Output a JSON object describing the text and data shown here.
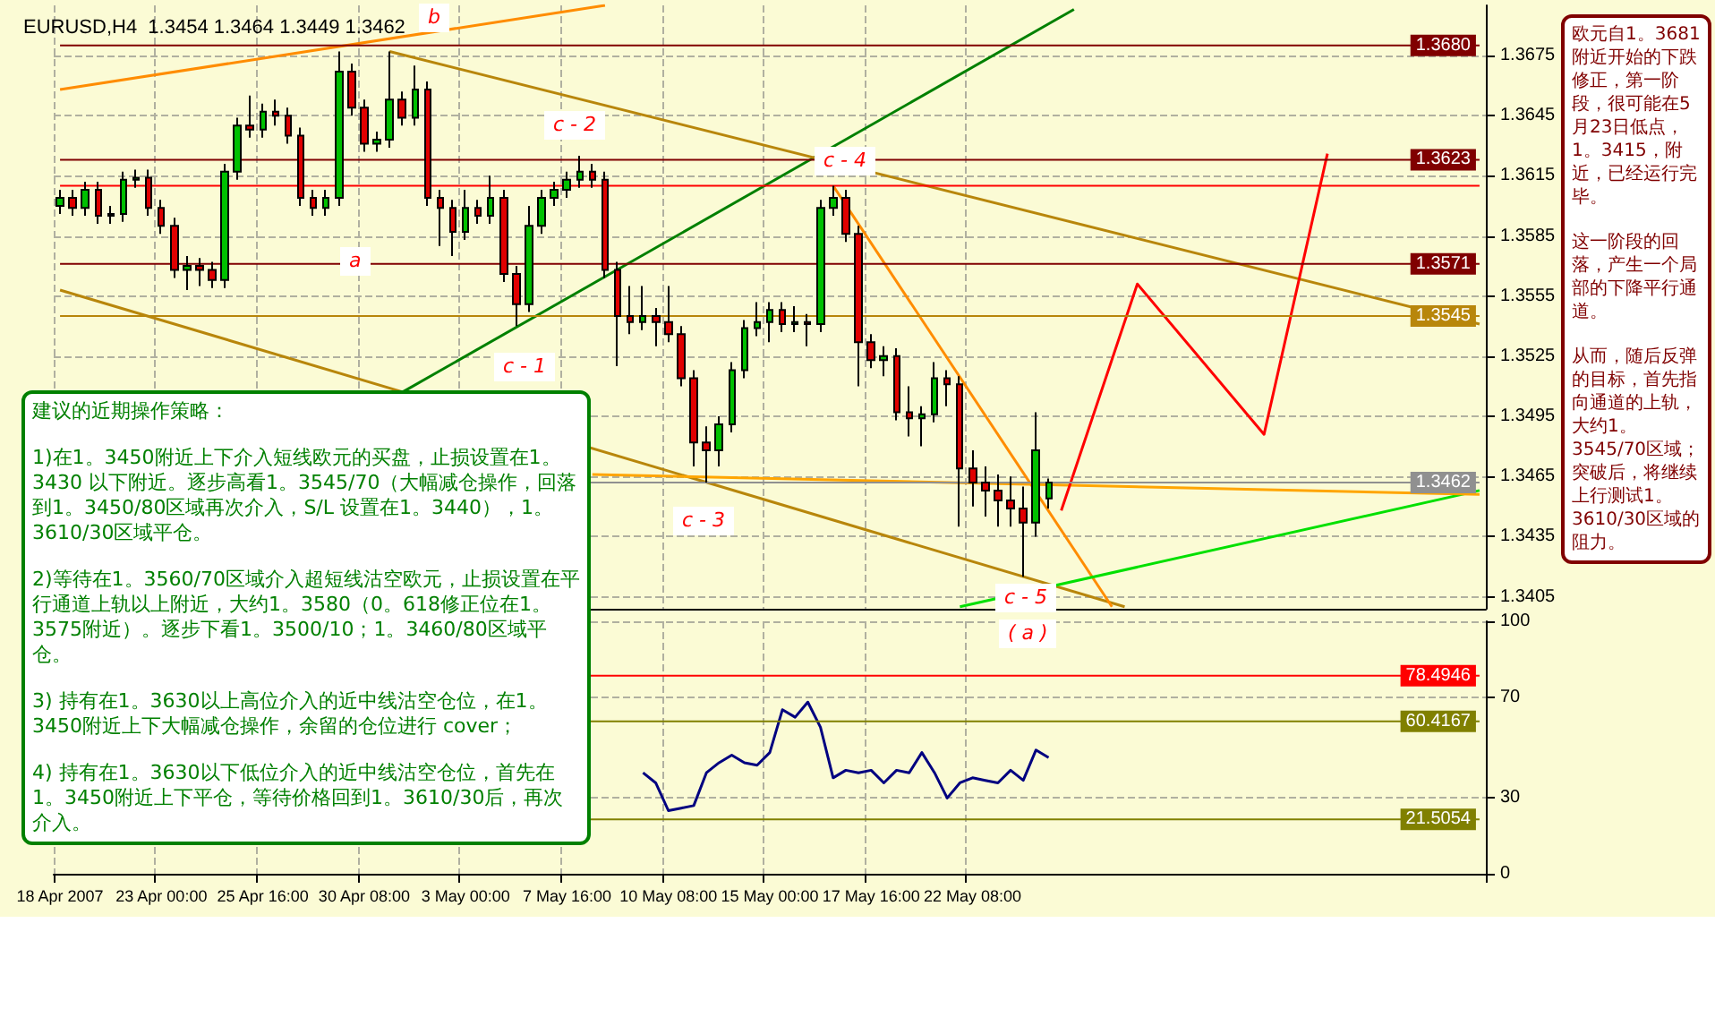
{
  "chart_data": [
    {
      "type": "candlestick",
      "title": "EURUSD,H4  1.3454 1.3464 1.3449 1.3462",
      "categories": [
        null,
        null,
        null,
        null,
        null,
        null,
        null,
        null,
        null,
        null,
        null,
        null,
        null,
        null,
        null,
        null,
        null,
        null,
        null,
        null,
        null,
        null,
        null,
        null,
        null,
        null,
        null,
        null,
        null,
        null,
        null,
        null,
        null,
        null,
        null,
        null,
        null,
        null,
        null,
        null,
        null,
        null,
        null,
        null,
        null,
        null,
        null,
        null,
        null,
        null,
        null,
        null,
        null,
        null,
        null,
        null,
        null,
        null,
        null,
        null,
        null,
        null,
        null,
        null,
        null,
        null,
        null,
        null,
        null,
        null,
        null,
        null,
        null,
        null,
        null,
        null,
        null,
        null,
        null,
        null,
        null,
        null,
        null,
        null,
        null,
        null,
        null,
        null,
        null,
        null,
        null,
        null,
        null,
        null,
        null,
        null,
        null,
        null,
        null,
        null,
        null,
        null,
        null,
        null,
        null,
        null,
        null,
        null,
        null,
        null,
        null,
        null,
        null
      ],
      "ohlc": [
        [
          1.36,
          1.3608,
          1.3596,
          1.3604
        ],
        [
          1.3604,
          1.3608,
          1.3595,
          1.3599
        ],
        [
          1.3599,
          1.3612,
          1.3595,
          1.3608
        ],
        [
          1.3608,
          1.3612,
          1.3591,
          1.3595
        ],
        [
          1.3595,
          1.36,
          1.3591,
          1.3596
        ],
        [
          1.3596,
          1.3617,
          1.3592,
          1.3613
        ],
        [
          1.3613,
          1.3618,
          1.3609,
          1.3614
        ],
        [
          1.3614,
          1.3618,
          1.3595,
          1.3599
        ],
        [
          1.3599,
          1.3603,
          1.3586,
          1.359
        ],
        [
          1.359,
          1.3594,
          1.3564,
          1.3568
        ],
        [
          1.3568,
          1.3575,
          1.3558,
          1.357
        ],
        [
          1.357,
          1.3574,
          1.356,
          1.3568
        ],
        [
          1.3568,
          1.3572,
          1.3559,
          1.3563
        ],
        [
          1.3563,
          1.3621,
          1.3559,
          1.3617
        ],
        [
          1.3617,
          1.3644,
          1.3613,
          1.364
        ],
        [
          1.364,
          1.3655,
          1.3634,
          1.3638
        ],
        [
          1.3638,
          1.3651,
          1.3634,
          1.3647
        ],
        [
          1.3647,
          1.3653,
          1.364,
          1.3645
        ],
        [
          1.3645,
          1.3649,
          1.3631,
          1.3635
        ],
        [
          1.3635,
          1.3639,
          1.36,
          1.3604
        ],
        [
          1.3604,
          1.3608,
          1.3595,
          1.3599
        ],
        [
          1.3599,
          1.3608,
          1.3595,
          1.3604
        ],
        [
          1.3604,
          1.3677,
          1.36,
          1.3667
        ],
        [
          1.3667,
          1.3671,
          1.3645,
          1.3649
        ],
        [
          1.3649,
          1.3653,
          1.3627,
          1.3631
        ],
        [
          1.3631,
          1.3637,
          1.3627,
          1.3633
        ],
        [
          1.3633,
          1.3677,
          1.3629,
          1.3653
        ],
        [
          1.3653,
          1.3657,
          1.364,
          1.3644
        ],
        [
          1.3644,
          1.367,
          1.364,
          1.3658
        ],
        [
          1.3658,
          1.3662,
          1.36,
          1.3604
        ],
        [
          1.3604,
          1.3608,
          1.358,
          1.3599
        ],
        [
          1.3599,
          1.3603,
          1.3575,
          1.3587
        ],
        [
          1.3587,
          1.3608,
          1.3583,
          1.3599
        ],
        [
          1.3599,
          1.3603,
          1.3591,
          1.3595
        ],
        [
          1.3595,
          1.3615,
          1.3591,
          1.3604
        ],
        [
          1.3604,
          1.3608,
          1.3562,
          1.3566
        ],
        [
          1.3566,
          1.357,
          1.354,
          1.3551
        ],
        [
          1.3551,
          1.36,
          1.3547,
          1.359
        ],
        [
          1.359,
          1.3608,
          1.3586,
          1.3604
        ],
        [
          1.3604,
          1.3612,
          1.36,
          1.3608
        ],
        [
          1.3608,
          1.3617,
          1.3604,
          1.3613
        ],
        [
          1.3613,
          1.3625,
          1.3609,
          1.3617
        ],
        [
          1.3617,
          1.3621,
          1.3609,
          1.3613
        ],
        [
          1.3613,
          1.3617,
          1.3564,
          1.3568
        ],
        [
          1.3568,
          1.3572,
          1.352,
          1.3545
        ],
        [
          1.3545,
          1.356,
          1.3536,
          1.3542
        ],
        [
          1.3542,
          1.356,
          1.3538,
          1.3545
        ],
        [
          1.3545,
          1.3549,
          1.353,
          1.3542
        ],
        [
          1.3542,
          1.356,
          1.3532,
          1.3536
        ],
        [
          1.3536,
          1.354,
          1.351,
          1.3514
        ],
        [
          1.3514,
          1.3518,
          1.347,
          1.3482
        ],
        [
          1.3482,
          1.349,
          1.3462,
          1.3478
        ],
        [
          1.3478,
          1.3495,
          1.347,
          1.3491
        ],
        [
          1.3491,
          1.3522,
          1.3487,
          1.3518
        ],
        [
          1.3518,
          1.3543,
          1.3514,
          1.3539
        ],
        [
          1.3539,
          1.3552,
          1.3535,
          1.3542
        ],
        [
          1.3542,
          1.3552,
          1.3532,
          1.3548
        ],
        [
          1.3548,
          1.3552,
          1.3537,
          1.3541
        ],
        [
          1.3541,
          1.355,
          1.3537,
          1.3542
        ],
        [
          1.3542,
          1.3546,
          1.353,
          1.3541
        ],
        [
          1.3541,
          1.3603,
          1.3537,
          1.3599
        ],
        [
          1.3599,
          1.361,
          1.3595,
          1.3604
        ],
        [
          1.3604,
          1.3608,
          1.3582,
          1.3586
        ],
        [
          1.3586,
          1.359,
          1.351,
          1.3532
        ],
        [
          1.3532,
          1.3536,
          1.3519,
          1.3523
        ],
        [
          1.3523,
          1.353,
          1.3515,
          1.3525
        ],
        [
          1.3525,
          1.3529,
          1.3493,
          1.3497
        ],
        [
          1.3497,
          1.351,
          1.3485,
          1.3494
        ],
        [
          1.3494,
          1.35,
          1.348,
          1.3496
        ],
        [
          1.3496,
          1.3522,
          1.3492,
          1.3514
        ],
        [
          1.3514,
          1.3518,
          1.35,
          1.3511
        ],
        [
          1.3511,
          1.3515,
          1.344,
          1.3469
        ],
        [
          1.3469,
          1.3478,
          1.345,
          1.3462
        ],
        [
          1.3462,
          1.347,
          1.3445,
          1.3458
        ],
        [
          1.3458,
          1.3466,
          1.344,
          1.3453
        ],
        [
          1.3453,
          1.3465,
          1.344,
          1.3449
        ],
        [
          1.3449,
          1.346,
          1.3415,
          1.3442
        ],
        [
          1.3442,
          1.3497,
          1.3435,
          1.3478
        ],
        [
          1.3454,
          1.3464,
          1.3449,
          1.3462
        ],
        null,
        null,
        null,
        null,
        null,
        null,
        null,
        null,
        null,
        null,
        null,
        null,
        null,
        null,
        null,
        null,
        null,
        null,
        null,
        null,
        null,
        null,
        null,
        null,
        null,
        null,
        null,
        null,
        null,
        null,
        null,
        null,
        null,
        null
      ],
      "series": [
        {
          "type": "line",
          "color": "#ff8c00",
          "values": [
            1.3658,
            null,
            null,
            null,
            null,
            null,
            null,
            null,
            null,
            null,
            null,
            null,
            null,
            null,
            null,
            null,
            null,
            null,
            null,
            null,
            null,
            null,
            null,
            null,
            null,
            null,
            null,
            null,
            null,
            null,
            null,
            null,
            null,
            null,
            null,
            null,
            null,
            null,
            null,
            null,
            null,
            null,
            null,
            1.37,
            null,
            null,
            null,
            null,
            null,
            null,
            null,
            null,
            null,
            null,
            null,
            null,
            null,
            null,
            null,
            null,
            null,
            null,
            null,
            null,
            null,
            null,
            null,
            null,
            null,
            null,
            null,
            null,
            null,
            null,
            null,
            null,
            null,
            null,
            null,
            null,
            null,
            null,
            null,
            null,
            null,
            null,
            null,
            null,
            null,
            null,
            null,
            null,
            null,
            null,
            null,
            null,
            null,
            null,
            null,
            null,
            null,
            null,
            null,
            null,
            null,
            null,
            null,
            null,
            null,
            null,
            null,
            null,
            null
          ]
        },
        {
          "type": "line",
          "color": "#008000",
          "values": [
            null,
            null,
            null,
            null,
            null,
            null,
            null,
            null,
            null,
            null,
            null,
            null,
            null,
            null,
            null,
            null,
            null,
            null,
            null,
            null,
            null,
            null,
            null,
            null,
            null,
            null,
            null,
            1.3507,
            null,
            null,
            null,
            null,
            null,
            null,
            null,
            null,
            null,
            null,
            null,
            null,
            null,
            null,
            null,
            null,
            null,
            null,
            null,
            null,
            null,
            null,
            null,
            null,
            null,
            null,
            null,
            null,
            null,
            null,
            null,
            null,
            null,
            null,
            null,
            null,
            null,
            null,
            null,
            null,
            null,
            null,
            null,
            null,
            null,
            null,
            null,
            null,
            null,
            null,
            null,
            null,
            1.3698,
            null,
            null,
            null,
            null,
            null,
            null,
            null,
            null,
            null,
            null,
            null,
            null,
            null,
            null,
            null,
            null,
            null,
            null,
            null,
            null,
            null,
            null,
            null,
            null,
            null,
            null,
            null,
            null,
            null,
            null,
            null,
            null
          ]
        },
        {
          "type": "line",
          "color": "#b8860b",
          "values": [
            null,
            null,
            null,
            null,
            null,
            null,
            null,
            null,
            null,
            null,
            null,
            null,
            null,
            null,
            null,
            null,
            null,
            null,
            null,
            null,
            null,
            null,
            null,
            null,
            null,
            null,
            1.3677,
            null,
            null,
            null,
            null,
            null,
            null,
            null,
            null,
            null,
            null,
            null,
            null,
            null,
            null,
            null,
            null,
            null,
            null,
            null,
            null,
            null,
            null,
            null,
            null,
            null,
            null,
            null,
            null,
            null,
            null,
            null,
            null,
            null,
            null,
            null,
            null,
            null,
            null,
            null,
            null,
            null,
            null,
            null,
            null,
            null,
            null,
            null,
            null,
            null,
            null,
            null,
            null,
            null,
            null,
            null,
            null,
            null,
            null,
            null,
            null,
            null,
            null,
            null,
            null,
            null,
            null,
            null,
            null,
            null,
            null,
            null,
            null,
            null,
            null,
            null,
            null,
            null,
            null,
            null,
            null,
            null,
            null,
            null,
            null,
            null,
            1.3541
          ]
        },
        {
          "type": "line",
          "color": "#b8860b",
          "values": [
            1.3558,
            null,
            null,
            null,
            null,
            null,
            null,
            null,
            null,
            null,
            null,
            null,
            null,
            null,
            null,
            null,
            null,
            null,
            null,
            null,
            null,
            null,
            null,
            null,
            null,
            null,
            null,
            null,
            null,
            null,
            null,
            null,
            null,
            null,
            null,
            null,
            null,
            null,
            null,
            null,
            null,
            null,
            null,
            null,
            null,
            null,
            null,
            null,
            null,
            null,
            null,
            null,
            null,
            null,
            null,
            null,
            null,
            null,
            null,
            null,
            null,
            null,
            null,
            null,
            null,
            null,
            null,
            null,
            null,
            null,
            null,
            null,
            null,
            null,
            null,
            null,
            null,
            null,
            null,
            null,
            null,
            null,
            null,
            null,
            1.34,
            null,
            null,
            null,
            null,
            null,
            null,
            null,
            null,
            null,
            null,
            null,
            null,
            null,
            null,
            null,
            null,
            null,
            null,
            null,
            null,
            null,
            null,
            null,
            null,
            null,
            null,
            null,
            null
          ]
        },
        {
          "type": "line",
          "color": "#ff8c00",
          "values": [
            null,
            null,
            null,
            null,
            null,
            null,
            null,
            null,
            null,
            null,
            null,
            null,
            null,
            null,
            null,
            null,
            null,
            null,
            null,
            null,
            null,
            null,
            null,
            null,
            null,
            null,
            null,
            null,
            null,
            null,
            null,
            null,
            null,
            null,
            null,
            null,
            null,
            null,
            null,
            null,
            null,
            null,
            null,
            null,
            null,
            null,
            null,
            null,
            null,
            null,
            null,
            null,
            null,
            null,
            null,
            null,
            null,
            null,
            null,
            null,
            null,
            1.361,
            null,
            null,
            null,
            null,
            null,
            null,
            null,
            null,
            null,
            null,
            null,
            null,
            null,
            null,
            null,
            null,
            null,
            null,
            null,
            null,
            null,
            1.34,
            null,
            null,
            null,
            null,
            null,
            null,
            null,
            null,
            null,
            null,
            null,
            null,
            null,
            null,
            null,
            null,
            null,
            null,
            null,
            null,
            null,
            null,
            null,
            null,
            null,
            null,
            null,
            null,
            null
          ]
        },
        {
          "type": "line",
          "color": "#00e000",
          "values": [
            null,
            null,
            null,
            null,
            null,
            null,
            null,
            null,
            null,
            null,
            null,
            null,
            null,
            null,
            null,
            null,
            null,
            null,
            null,
            null,
            null,
            null,
            null,
            null,
            null,
            null,
            null,
            null,
            null,
            null,
            null,
            null,
            null,
            null,
            null,
            null,
            null,
            null,
            null,
            null,
            null,
            null,
            null,
            null,
            null,
            null,
            null,
            null,
            null,
            null,
            null,
            null,
            null,
            null,
            null,
            null,
            null,
            null,
            null,
            null,
            null,
            null,
            null,
            null,
            null,
            null,
            null,
            null,
            null,
            null,
            null,
            1.34,
            null,
            null,
            null,
            null,
            null,
            null,
            null,
            null,
            null,
            null,
            null,
            null,
            null,
            null,
            null,
            null,
            null,
            null,
            null,
            null,
            null,
            null,
            null,
            null,
            null,
            null,
            null,
            null,
            null,
            null,
            null,
            null,
            null,
            null,
            null,
            null,
            null,
            null,
            null,
            null,
            1.3458
          ]
        },
        {
          "type": "line",
          "color": "#ffa500",
          "values": [
            null,
            null,
            null,
            null,
            null,
            null,
            null,
            null,
            null,
            null,
            null,
            null,
            null,
            null,
            null,
            null,
            null,
            null,
            null,
            null,
            null,
            null,
            null,
            null,
            null,
            null,
            null,
            null,
            null,
            null,
            null,
            null,
            null,
            null,
            null,
            null,
            null,
            null,
            null,
            null,
            null,
            null,
            1.3466,
            null,
            null,
            null,
            null,
            null,
            null,
            null,
            null,
            null,
            null,
            null,
            null,
            null,
            null,
            null,
            null,
            null,
            null,
            null,
            null,
            null,
            null,
            null,
            null,
            null,
            null,
            null,
            null,
            null,
            null,
            null,
            null,
            null,
            null,
            null,
            null,
            null,
            null,
            null,
            null,
            null,
            null,
            null,
            null,
            null,
            null,
            null,
            null,
            null,
            null,
            null,
            null,
            null,
            null,
            null,
            null,
            null,
            null,
            null,
            null,
            null,
            null,
            null,
            null,
            null,
            null,
            null,
            null,
            null,
            1.3456
          ]
        },
        {
          "type": "line",
          "color": "#ff0000",
          "values": [
            null,
            null,
            null,
            null,
            null,
            null,
            null,
            null,
            null,
            null,
            null,
            null,
            null,
            null,
            null,
            null,
            null,
            null,
            null,
            null,
            null,
            null,
            null,
            null,
            null,
            null,
            null,
            null,
            null,
            null,
            null,
            null,
            null,
            null,
            null,
            null,
            null,
            null,
            null,
            null,
            null,
            null,
            null,
            null,
            null,
            null,
            null,
            null,
            null,
            null,
            null,
            null,
            null,
            null,
            null,
            null,
            null,
            null,
            null,
            null,
            null,
            null,
            null,
            null,
            null,
            null,
            null,
            null,
            null,
            null,
            null,
            null,
            null,
            null,
            null,
            null,
            null,
            null,
            null,
            1.3448,
            null,
            null,
            null,
            null,
            null,
            1.3561,
            null,
            null,
            null,
            null,
            null,
            null,
            null,
            null,
            null,
            1.3486,
            null,
            null,
            null,
            null,
            1.3626,
            null,
            null,
            null,
            null,
            null,
            null,
            null,
            null,
            null,
            null,
            null,
            null
          ]
        }
      ],
      "ylim": [
        1.3399,
        1.37
      ],
      "yticks": [
        1.3405,
        1.3435,
        1.3465,
        1.3495,
        1.3525,
        1.3555,
        1.3585,
        1.3615,
        1.3645,
        1.3675
      ],
      "ref_lines": [
        {
          "axis": "y",
          "value": 1.368,
          "label": "1.3680",
          "color": "#800000"
        },
        {
          "axis": "y",
          "value": 1.3623,
          "label": "1.3623",
          "color": "#800000"
        },
        {
          "axis": "y",
          "value": 1.3571,
          "label": "1.3571",
          "color": "#800000"
        },
        {
          "axis": "y",
          "value": 1.3545,
          "label": "1.3545",
          "color": "#b8860b"
        },
        {
          "axis": "y",
          "value": 1.3462,
          "label": "1.3462",
          "color": "#909090"
        },
        {
          "axis": "y",
          "value": 1.361,
          "color": "#ff0000"
        }
      ],
      "grid": true,
      "tick_labels": "y",
      "annotations": [
        "建议的近期操作策略：",
        "1)在1。3450附近上下介入短线欧元的买盘，止损设置在1。3430 以下附近。逐步高看1。3545/70（大幅减仓操作，回落到1。3450/80区域再次介入，S/L 设置在1。3440），1。3610/30区域平仓。",
        "2)等待在1。3560/70区域介入超短线沽空欧元，止损设置在平行通道上轨以上附近，大约1。3580（0。618修正位在1。3575附近）。逐步下看1。3500/10；1。3460/80区域平仓。",
        "3) 持有在1。3630以上高位介入的近中线沽空仓位，在1。3450附近上下大幅减仓操作，余留的仓位进行 cover；",
        "4) 持有在1。3630以下低位介入的近中线沽空仓位，首先在1。3450附近上下平仓，等待价格回到1。3610/30后，再次介入。",
        "欧元自1。3681附近开始的下跌修正，第一阶段，很可能在5月23日低点，1。3415，附近，已经运行完毕。",
        "这一阶段的回落，产生一个局部的下降平行通道。",
        "从而，随后反弹的目标，首先指向通道的上轨，大约1。3545/70区域；",
        "突破后，将继续上行测试1。3610/30区域的阻力。",
        "b",
        "a",
        "c - 2",
        "c - 1",
        "c - 3",
        "c - 4",
        "c - 5",
        "( a )"
      ]
    },
    {
      "type": "line",
      "color": "#000080",
      "categories": [
        "18 Apr 2007",
        null,
        null,
        null,
        null,
        null,
        null,
        null,
        "23 Apr 00:00",
        null,
        null,
        null,
        null,
        null,
        null,
        null,
        "25 Apr 16:00",
        null,
        null,
        null,
        null,
        null,
        null,
        null,
        "30 Apr 08:00",
        null,
        null,
        null,
        null,
        null,
        null,
        null,
        "3 May 00:00",
        null,
        null,
        null,
        null,
        null,
        null,
        null,
        "7 May 16:00",
        null,
        null,
        null,
        null,
        null,
        null,
        null,
        "10 May 08:00",
        null,
        null,
        null,
        null,
        null,
        null,
        null,
        "15 May 00:00",
        null,
        null,
        null,
        null,
        null,
        null,
        null,
        "17 May 16:00",
        null,
        null,
        null,
        null,
        null,
        null,
        null,
        "22 May 08:00",
        null,
        null,
        null,
        null,
        null,
        null,
        null,
        null,
        null,
        null,
        null,
        null,
        null,
        null,
        null,
        null,
        null,
        null,
        null,
        null,
        null,
        null,
        null,
        null,
        null,
        null,
        null,
        null,
        null,
        null,
        null,
        null,
        null,
        null,
        null,
        null,
        null,
        null,
        null,
        null
      ],
      "values": [
        null,
        null,
        null,
        null,
        null,
        null,
        null,
        null,
        null,
        null,
        null,
        null,
        null,
        null,
        null,
        null,
        null,
        null,
        null,
        null,
        null,
        null,
        null,
        null,
        null,
        null,
        null,
        null,
        null,
        null,
        null,
        null,
        null,
        null,
        null,
        null,
        null,
        null,
        null,
        null,
        null,
        null,
        null,
        null,
        null,
        null,
        40,
        36,
        25,
        26,
        27,
        40,
        44,
        47,
        44,
        43,
        48,
        65,
        62,
        68,
        58,
        38,
        41,
        40,
        41,
        36,
        41,
        40,
        48,
        40,
        30,
        36,
        38,
        37,
        36,
        41,
        37,
        49,
        46,
        null,
        null,
        null,
        null,
        null,
        null,
        null,
        null,
        null,
        null,
        null,
        null,
        null,
        null,
        null,
        null,
        null,
        null,
        null,
        null,
        null,
        null,
        null,
        null,
        null,
        null,
        null,
        null,
        null,
        null,
        null,
        null,
        null,
        null
      ],
      "ylim": [
        0,
        100
      ],
      "yticks": [
        0,
        30,
        70,
        100
      ],
      "ref_lines": [
        {
          "axis": "y",
          "value": 78.4946,
          "label": "78.4946",
          "color": "#ff0000"
        },
        {
          "axis": "y",
          "value": 60.4167,
          "label": "60.4167",
          "color": "#808000"
        },
        {
          "axis": "y",
          "value": 21.5054,
          "label": "21.5054",
          "color": "#808000"
        }
      ],
      "grid": true
    }
  ]
}
